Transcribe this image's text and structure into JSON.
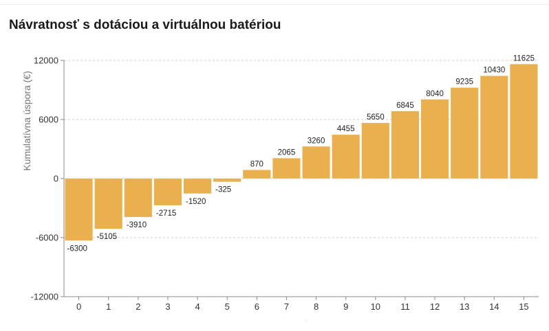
{
  "chart_data": {
    "type": "bar",
    "title": "Návratnosť s dotáciou a virtuálnou batériou",
    "xlabel": "",
    "ylabel": "Kumulatívna úspora (€)",
    "categories": [
      "0",
      "1",
      "2",
      "3",
      "4",
      "5",
      "6",
      "7",
      "8",
      "9",
      "10",
      "11",
      "12",
      "13",
      "14",
      "15"
    ],
    "values": [
      -6300,
      -5105,
      -3910,
      -2715,
      -1520,
      -325,
      870,
      2065,
      3260,
      4455,
      5650,
      6845,
      8040,
      9235,
      10430,
      11625
    ],
    "ylim": [
      -12000,
      12000
    ],
    "yticks": [
      -12000,
      -6000,
      0,
      6000,
      12000
    ],
    "grid": true,
    "bar_color": "#eab04e",
    "grid_color": "#cccccc",
    "axis_color": "#888888"
  }
}
